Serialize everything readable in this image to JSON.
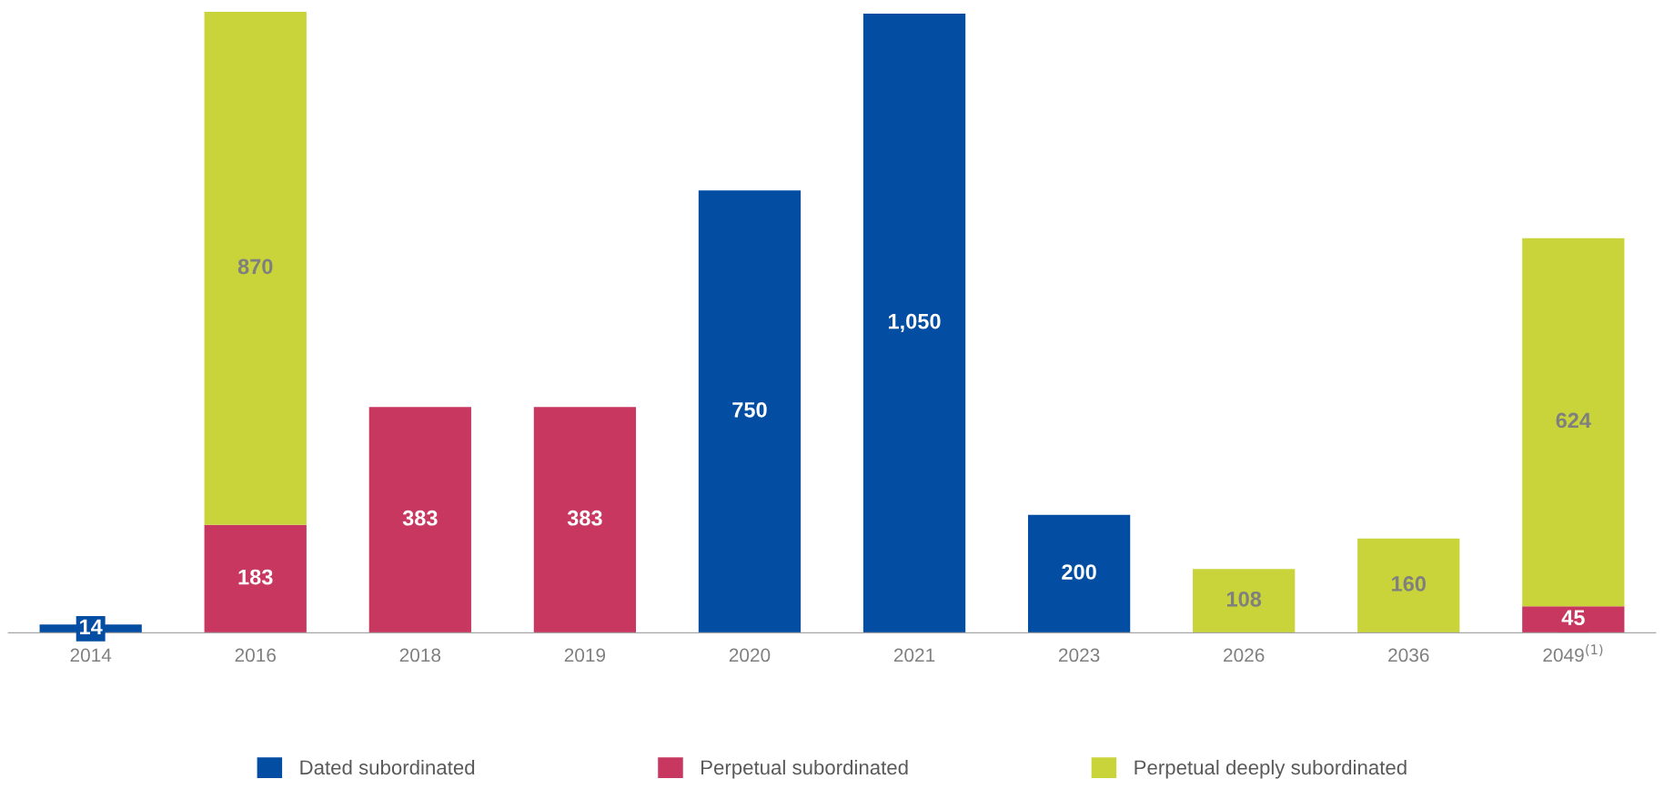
{
  "chart_data": {
    "type": "bar",
    "stacked": true,
    "data_labels": true,
    "legend": "bottom",
    "grid": false,
    "tick_labels": "x",
    "categories": [
      "2014",
      "2016",
      "2018",
      "2019",
      "2020",
      "2021",
      "2023",
      "2026",
      "2036",
      "2049$^{(1)}$"
    ],
    "series": [
      {
        "name": "Dated subordinated",
        "color": "#034ea2",
        "values": [
          14,
          null,
          null,
          null,
          750,
          1050,
          200,
          null,
          null,
          null
        ],
        "value_labels": [
          "14",
          null,
          null,
          null,
          "750",
          "1,050",
          "200",
          null,
          null,
          null
        ]
      },
      {
        "name": "Perpetual subordinated",
        "color": "#c8375f",
        "values": [
          null,
          183,
          383,
          383,
          null,
          null,
          null,
          null,
          null,
          45
        ]
      },
      {
        "name": "Perpetual deeply subordinated",
        "color": "#c8d43a",
        "values": [
          null,
          870,
          null,
          null,
          null,
          null,
          null,
          108,
          160,
          624
        ]
      }
    ]
  }
}
